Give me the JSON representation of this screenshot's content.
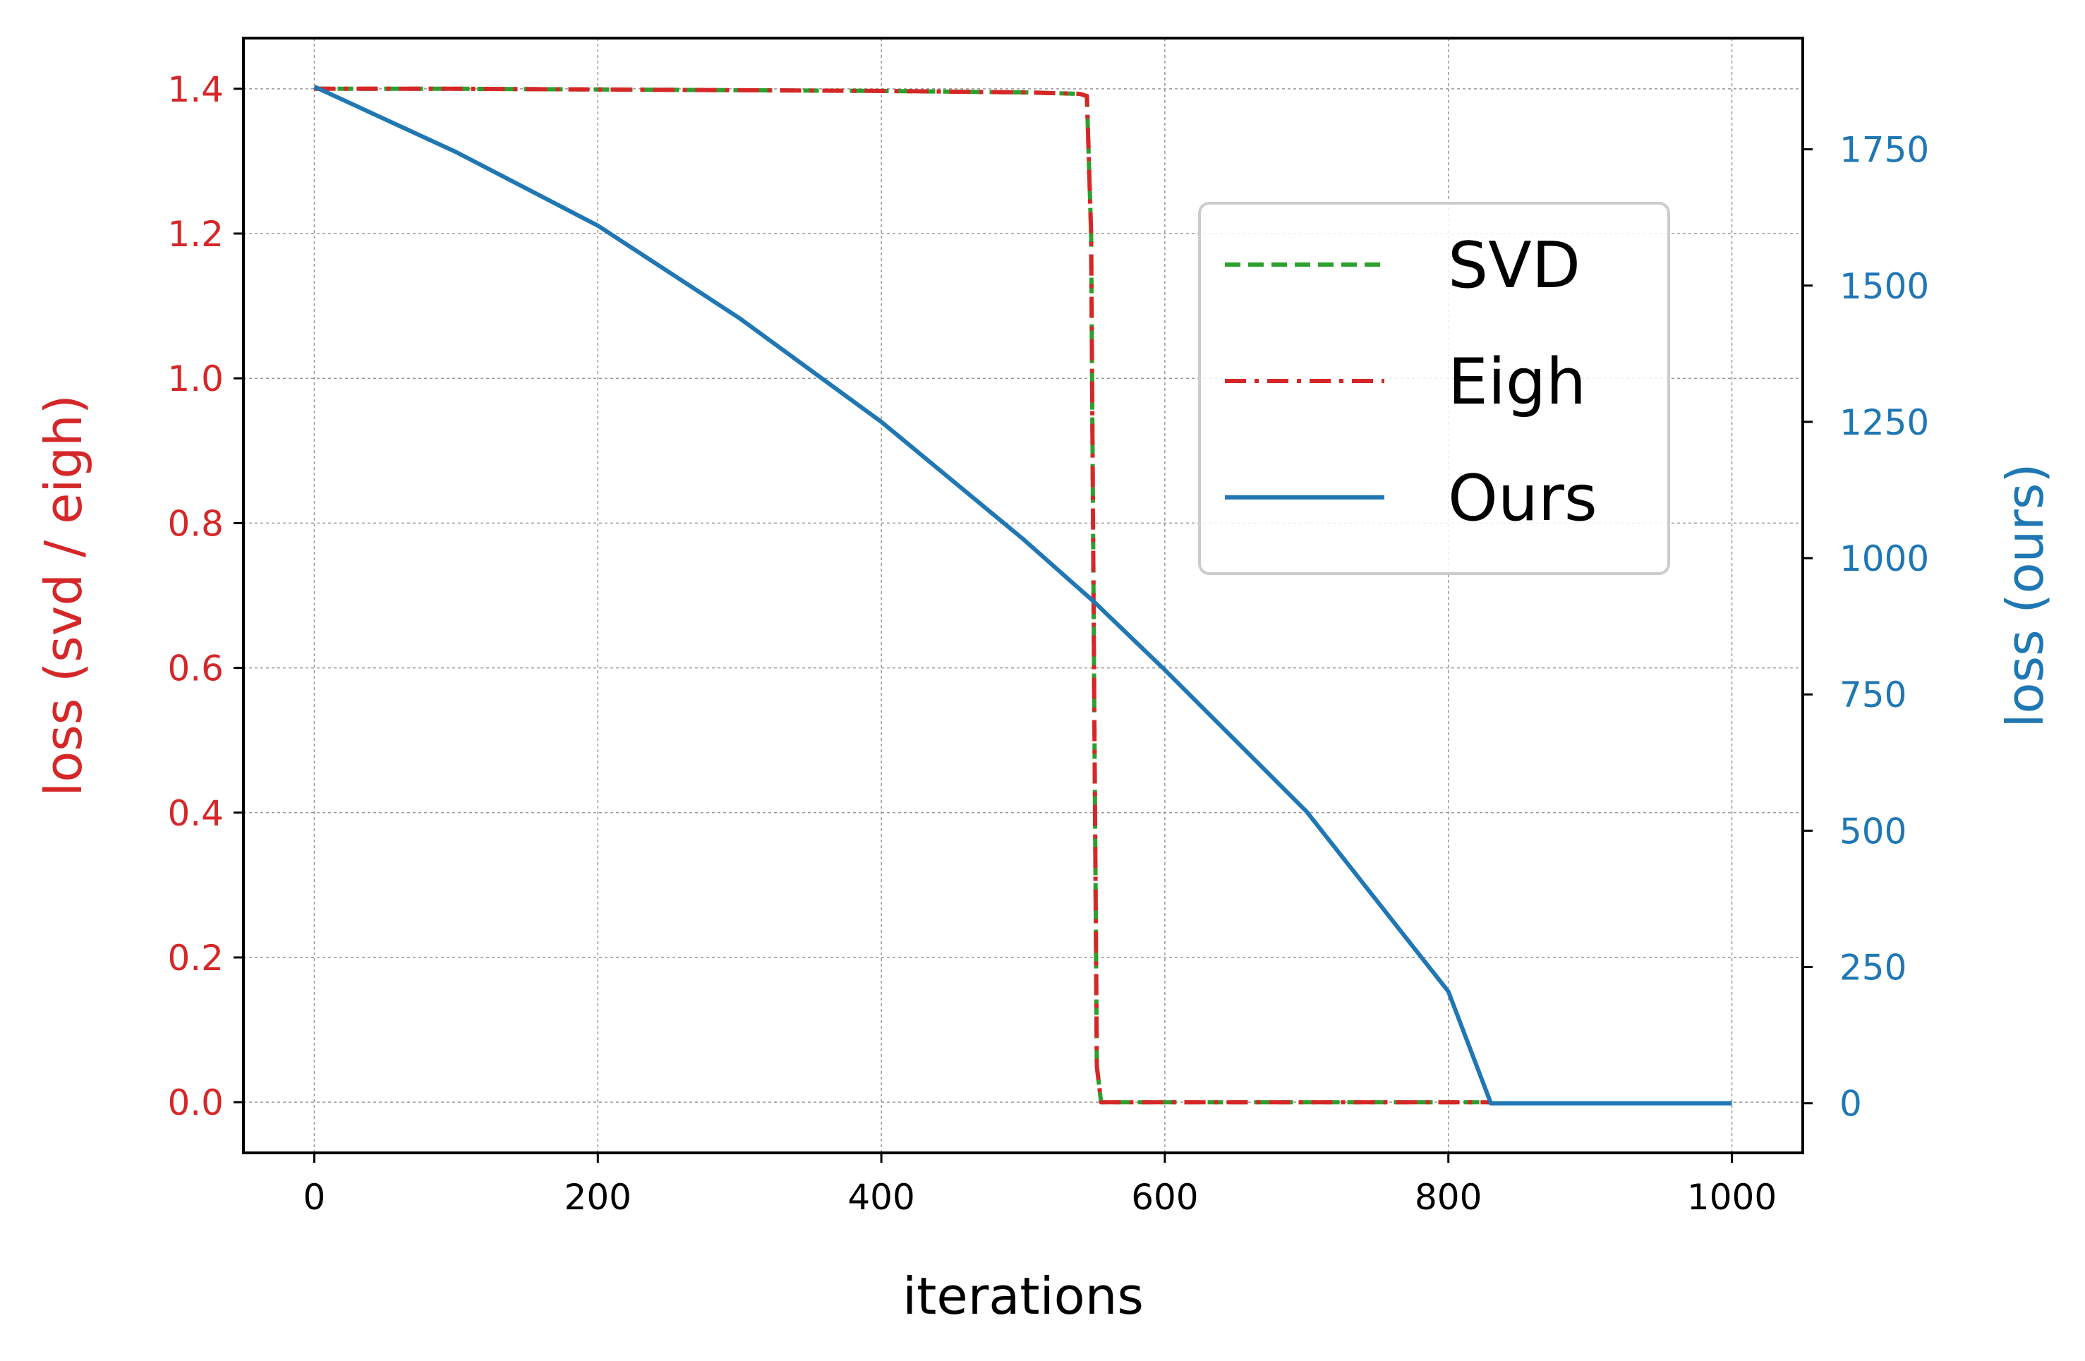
{
  "chart_data": {
    "type": "line",
    "title": "",
    "xlabel": "iterations",
    "ylabel_left": "loss (svd / eigh)",
    "ylabel_right": "loss (ours)",
    "xlim": [
      -50,
      1050
    ],
    "ylim_left": [
      -0.07,
      1.47
    ],
    "ylim_right": [
      -91,
      1954
    ],
    "x_ticks": [
      "0",
      "200",
      "400",
      "600",
      "800",
      "1000"
    ],
    "y_left_ticks": [
      "0.0",
      "0.2",
      "0.4",
      "0.6",
      "0.8",
      "1.0",
      "1.2",
      "1.4"
    ],
    "y_right_ticks": [
      "0",
      "250",
      "500",
      "750",
      "1000",
      "1250",
      "1500",
      "1750"
    ],
    "grid": true,
    "legend_position": "upper-right",
    "colors": {
      "svd": "#2ca02c",
      "eigh": "#d62728",
      "ours": "#1f77b4",
      "left_axis": "#d62728",
      "right_axis": "#1f77b4"
    },
    "series": [
      {
        "name": "SVD",
        "axis": "left",
        "style": "dashed",
        "x": [
          0,
          100,
          200,
          300,
          400,
          500,
          540,
          545,
          548,
          550,
          552,
          555,
          560,
          700,
          800,
          830
        ],
        "y": [
          1.4,
          1.4,
          1.399,
          1.398,
          1.397,
          1.395,
          1.393,
          1.39,
          1.2,
          0.6,
          0.05,
          0.0,
          0.0,
          0.0,
          0.0,
          0.0
        ]
      },
      {
        "name": "Eigh",
        "axis": "left",
        "style": "dashdot",
        "x": [
          0,
          100,
          200,
          300,
          400,
          500,
          540,
          545,
          548,
          550,
          552,
          555,
          560,
          700,
          800,
          830
        ],
        "y": [
          1.4,
          1.4,
          1.399,
          1.398,
          1.397,
          1.395,
          1.393,
          1.39,
          1.2,
          0.6,
          0.05,
          0.0,
          0.0,
          0.0,
          0.0,
          0.0
        ]
      },
      {
        "name": "Ours",
        "axis": "right",
        "style": "solid",
        "x": [
          0,
          100,
          200,
          300,
          400,
          500,
          550,
          600,
          700,
          800,
          830,
          900,
          1000
        ],
        "y": [
          1865,
          1745,
          1610,
          1440,
          1250,
          1035,
          920,
          795,
          535,
          205,
          0,
          0,
          0
        ]
      }
    ]
  }
}
